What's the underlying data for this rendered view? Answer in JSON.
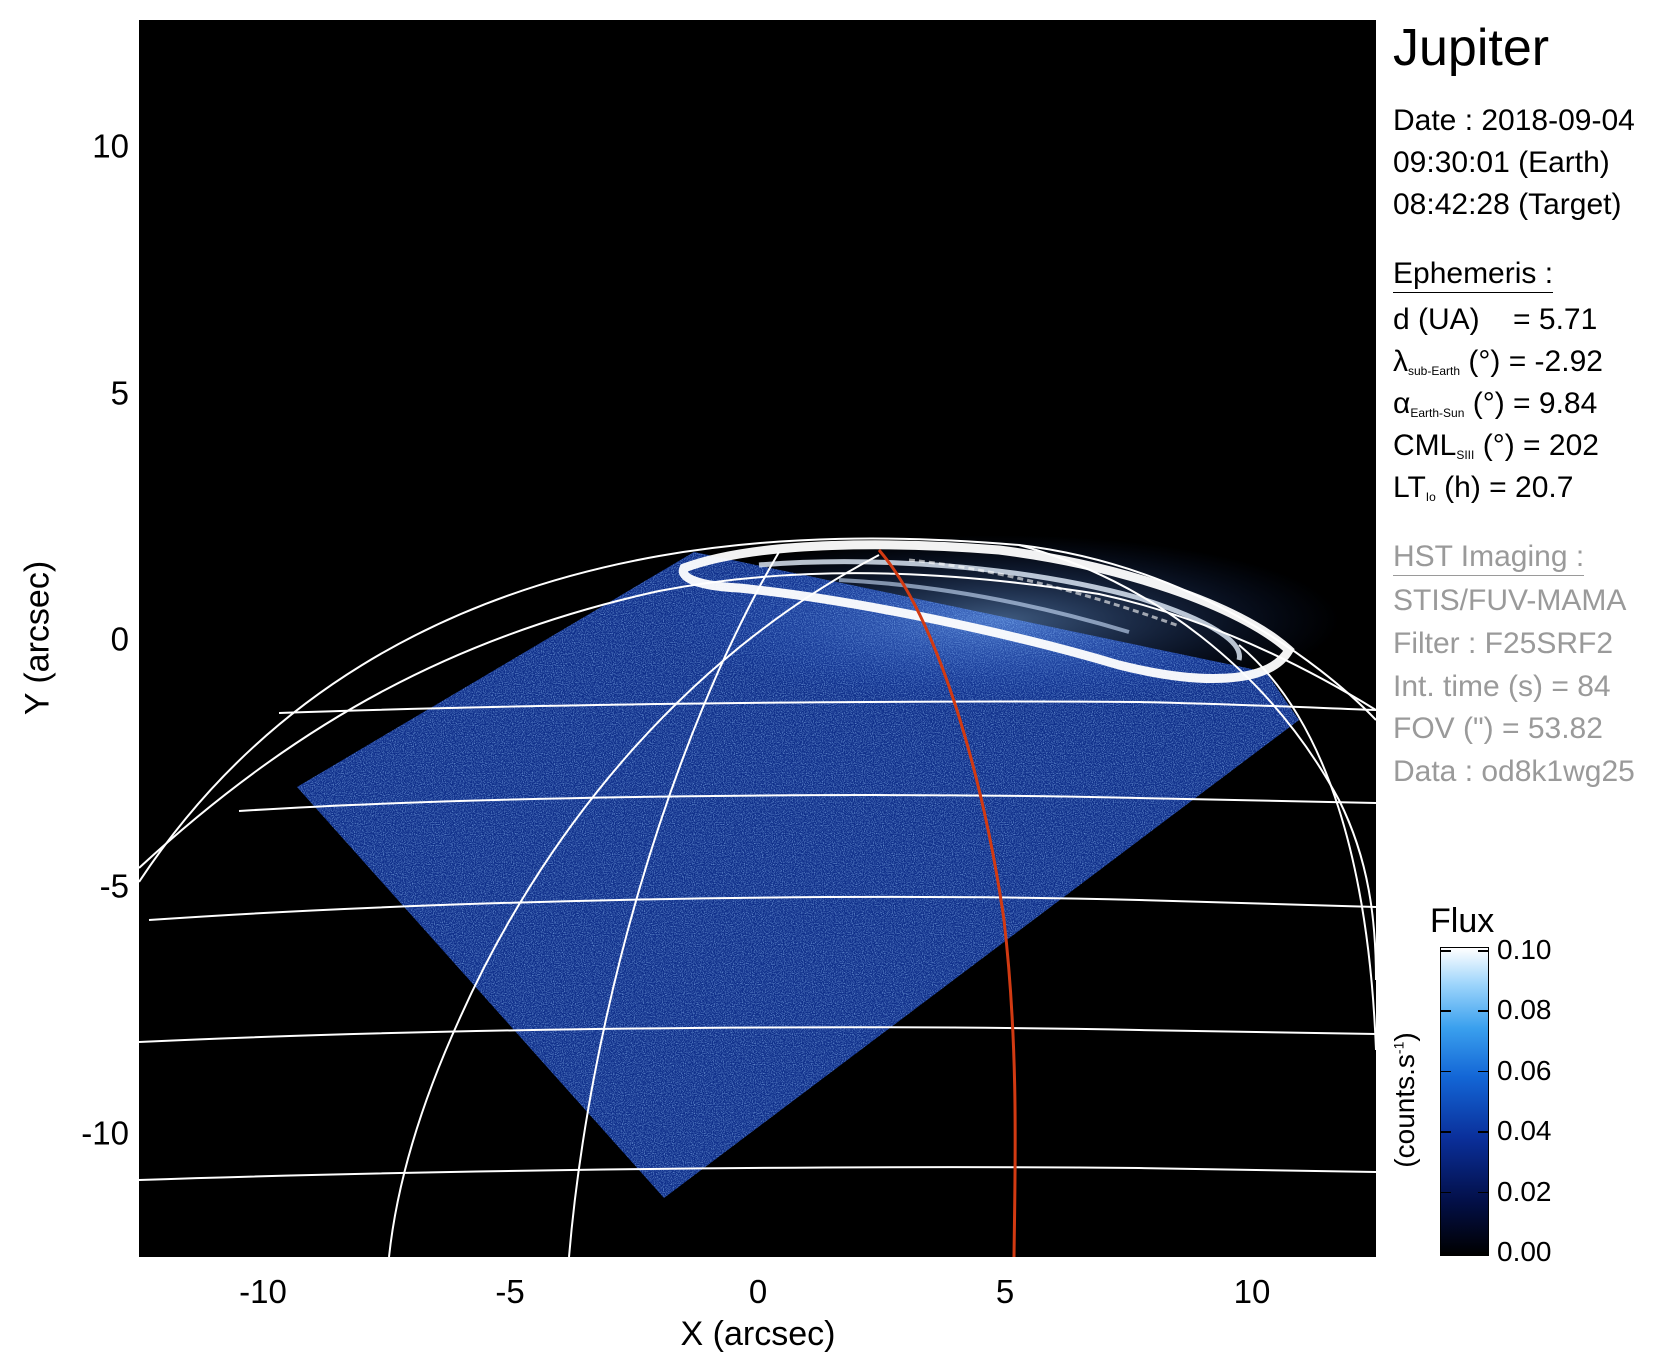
{
  "image": {
    "subject": "HST far-ultraviolet image of Jupiter's northern aurora with a latitude/longitude grid overlay and a red meridian line",
    "colors": {
      "background": "#000000",
      "grid": "#ffffff",
      "meridian": "#d23a12",
      "disk_tint": "#1f4fc4",
      "aurora": "#ffffff"
    }
  },
  "axes": {
    "x_label": "X (arcsec)",
    "y_label": "Y (arcsec)",
    "x_ticks": [
      "-10",
      "-5",
      "0",
      "5",
      "10"
    ],
    "y_ticks": [
      "10",
      "5",
      "0",
      "-5",
      "-10"
    ],
    "x_range": [
      -12.5,
      12.5
    ],
    "y_range": [
      -12.5,
      12.5
    ]
  },
  "info": {
    "target": "Jupiter",
    "date_line": "Date : 2018-09-04",
    "earth_time": "09:30:01 (Earth)",
    "target_time": "08:42:28 (Target)",
    "ephemeris_header": "Ephemeris :",
    "ephemeris": {
      "distance": {
        "label": "d (UA)",
        "value": "= 5.71"
      },
      "sub_earth": {
        "symbol": "λ",
        "subscript": "sub-Earth",
        "unit": "(°)",
        "value": "= -2.92"
      },
      "earth_sun": {
        "symbol": "α",
        "subscript": "Earth-Sun",
        "unit": "(°)",
        "value": "= 9.84"
      },
      "cml": {
        "symbol": "CML",
        "subscript": "SIII",
        "unit": "(°)",
        "value": "= 202"
      },
      "lt": {
        "symbol": "LT",
        "subscript": "Io",
        "unit": "(h)",
        "value": "= 20.7"
      }
    },
    "imaging_header": "HST Imaging :",
    "imaging": {
      "instrument": "STIS/FUV-MAMA",
      "filter": "Filter : F25SRF2",
      "int_time": "Int. time (s) = 84",
      "fov": "FOV (\") = 53.82",
      "data": "Data : od8k1wg25"
    }
  },
  "colorbar": {
    "title": "Flux",
    "label": "(counts.s",
    "label_sup": "-1",
    "label_close": ")",
    "ticks": [
      "0.10",
      "0.08",
      "0.06",
      "0.04",
      "0.02",
      "0.00"
    ],
    "range": [
      0.0,
      0.1
    ]
  }
}
